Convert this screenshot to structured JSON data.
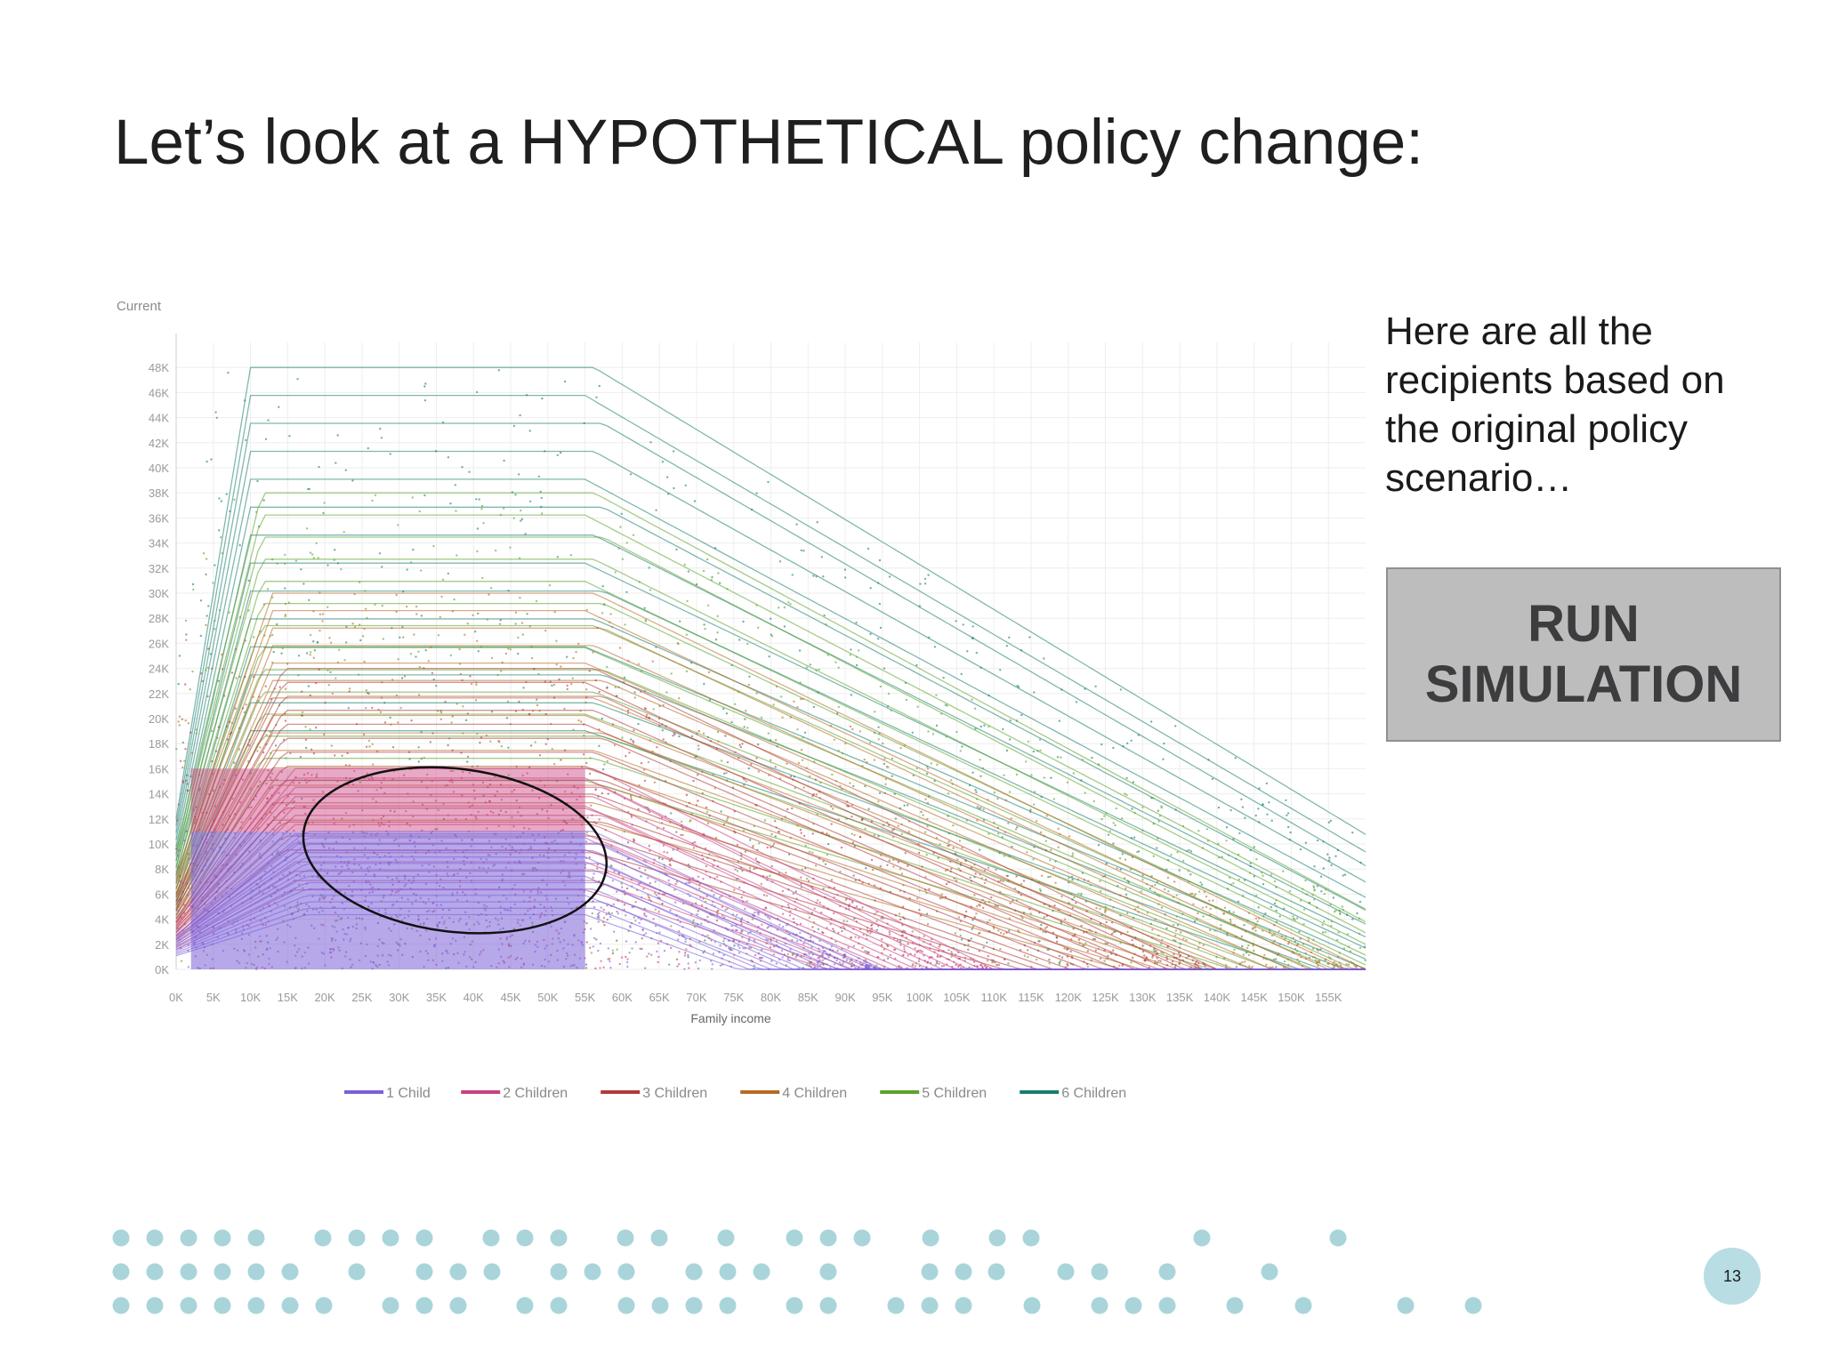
{
  "slide": {
    "title": "Let’s look at a HYPOTHETICAL policy change:",
    "side_text": "Here are all the recipients based on the original policy scenario…",
    "button_label": "RUN\nSIMULATION",
    "page_number": "13",
    "dot_color": "#a9d5da"
  },
  "chart_data": {
    "type": "scatter",
    "ylabel": "Current",
    "xlabel": "Family income",
    "x_ticks": [
      "0K",
      "5K",
      "10K",
      "15K",
      "20K",
      "25K",
      "30K",
      "35K",
      "40K",
      "45K",
      "50K",
      "55K",
      "60K",
      "65K",
      "70K",
      "75K",
      "80K",
      "85K",
      "90K",
      "95K",
      "100K",
      "105K",
      "110K",
      "115K",
      "120K",
      "125K",
      "130K",
      "135K",
      "140K",
      "145K",
      "150K",
      "155K"
    ],
    "y_ticks": [
      "0K",
      "2K",
      "4K",
      "6K",
      "8K",
      "10K",
      "12K",
      "14K",
      "16K",
      "18K",
      "20K",
      "22K",
      "24K",
      "26K",
      "28K",
      "30K",
      "32K",
      "34K",
      "36K",
      "38K",
      "40K",
      "42K",
      "44K",
      "46K",
      "48K"
    ],
    "xlim": [
      0,
      160000
    ],
    "ylim": [
      0,
      50000
    ],
    "grid": true,
    "legend_position": "bottom",
    "series": [
      {
        "name": "1 Child",
        "color": "#7b61d8",
        "plateau_max": 11000,
        "plateau_end": 55000,
        "zero_income": 95000
      },
      {
        "name": "2 Children",
        "color": "#c9407f",
        "plateau_max": 16000,
        "plateau_end": 55000,
        "zero_income": 110000
      },
      {
        "name": "3 Children",
        "color": "#b03a3a",
        "plateau_max": 24000,
        "plateau_end": 55000,
        "zero_income": 140000
      },
      {
        "name": "4 Children",
        "color": "#b66a22",
        "plateau_max": 30000,
        "plateau_end": 55000,
        "zero_income": 160000
      },
      {
        "name": "5 Children",
        "color": "#5aa32a",
        "plateau_max": 38000,
        "plateau_end": 55000,
        "zero_income": 175000
      },
      {
        "name": "6 Children",
        "color": "#177d6e",
        "plateau_max": 48000,
        "plateau_end": 55000,
        "zero_income": 190000
      }
    ],
    "annotation": {
      "shape": "ellipse",
      "x_range": [
        17000,
        58000
      ],
      "y_range": [
        3000,
        16000
      ]
    }
  }
}
